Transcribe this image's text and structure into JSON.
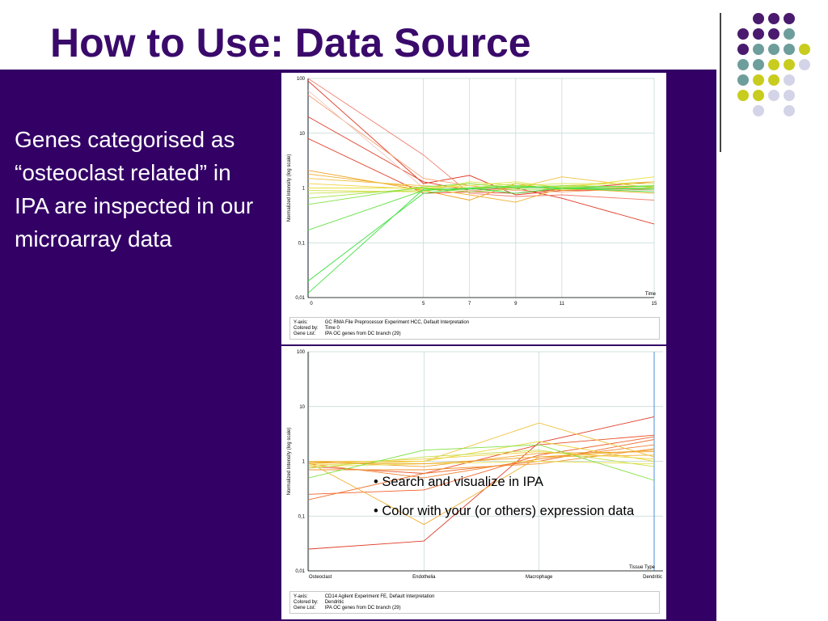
{
  "slide": {
    "title": "How to Use: Data Source",
    "left_text": "Genes categorised as “osteoclast related” in IPA are inspected in our microarray data",
    "bullets": [
      "• Search and visualize in IPA",
      "• Color with your (or others) expression data"
    ]
  },
  "theme": {
    "title_color": "#3a0a6b",
    "panel_color": "#330066",
    "dot_colors": [
      "#4a1a6e",
      "#6e9e9c",
      "#c8cc1e",
      "#d4d4e8"
    ]
  },
  "dots": {
    "grid": [
      [
        null,
        "purple",
        "purple",
        "purple",
        null
      ],
      [
        "purple",
        "purple",
        "purple",
        "teal",
        null
      ],
      [
        "purple",
        "teal",
        "teal",
        "teal",
        "yellow"
      ],
      [
        "teal",
        "teal",
        "yellow",
        "yellow",
        "lavender"
      ],
      [
        "teal",
        "yellow",
        "yellow",
        "lavender",
        null
      ],
      [
        "yellow",
        "yellow",
        "lavender",
        "lavender",
        null
      ],
      [
        null,
        "lavender",
        null,
        "lavender",
        null
      ]
    ]
  },
  "chart_data": [
    {
      "type": "line",
      "xlabel": "Time",
      "ylabel": "Normalized Intensity (log scale)",
      "y_scale": "log",
      "ylim": [
        0.01,
        100
      ],
      "xlim": [
        0,
        15
      ],
      "x_ticks": [
        0,
        5,
        7,
        9,
        11,
        15
      ],
      "y_ticks": [
        "100",
        "10",
        "1",
        "0,1",
        "0,01"
      ],
      "info": {
        "rows": [
          [
            "Y-axis:",
            "GC RMA File Preprocessor Experiment HCC, Default Interpretation"
          ],
          [
            "Colored by:",
            "Time 0"
          ],
          [
            "Gene List:",
            "IPA OC genes from DC branch (29)"
          ]
        ]
      },
      "x": [
        0,
        5,
        7,
        9,
        11,
        15
      ],
      "series": [
        {
          "color": "#e03c28",
          "values": [
            90,
            1.2,
            1.7,
            0.75,
            0.9,
            0.95
          ]
        },
        {
          "color": "#e03c28",
          "values": [
            20,
            1.3,
            0.9,
            1.0,
            0.65,
            0.22
          ]
        },
        {
          "color": "#e03c28",
          "values": [
            8,
            0.8,
            0.85,
            0.8,
            0.95,
            1.3
          ]
        },
        {
          "color": "#f08070",
          "values": [
            100,
            4,
            0.8,
            0.7,
            0.75,
            0.6
          ]
        },
        {
          "color": "#f4a070",
          "values": [
            50,
            1.5,
            1.1,
            0.9,
            0.85,
            1.0
          ]
        },
        {
          "color": "#f0c8c0",
          "values": [
            60,
            1.0,
            0.9,
            1.1,
            1.0,
            0.9
          ]
        },
        {
          "color": "#f0a020",
          "values": [
            2.1,
            0.9,
            0.6,
            1.2,
            0.9,
            1.1
          ]
        },
        {
          "color": "#f0b030",
          "values": [
            1.8,
            1.0,
            0.75,
            0.55,
            1.0,
            0.8
          ]
        },
        {
          "color": "#f0c040",
          "values": [
            1.5,
            1.1,
            1.0,
            1.0,
            1.6,
            1.0
          ]
        },
        {
          "color": "#f0d040",
          "values": [
            1.2,
            0.95,
            1.2,
            1.0,
            1.1,
            1.3
          ]
        },
        {
          "color": "#e8e040",
          "values": [
            1.0,
            1.0,
            1.1,
            1.3,
            1.0,
            1.6
          ]
        },
        {
          "color": "#d8e040",
          "values": [
            0.9,
            0.85,
            1.3,
            1.1,
            1.2,
            1.2
          ]
        },
        {
          "color": "#c8e050",
          "values": [
            0.8,
            0.9,
            1.0,
            1.2,
            1.05,
            1.1
          ]
        },
        {
          "color": "#a0e040",
          "values": [
            0.65,
            1.0,
            0.85,
            0.95,
            0.95,
            1.0
          ]
        },
        {
          "color": "#80e040",
          "values": [
            0.5,
            1.05,
            1.2,
            1.0,
            1.1,
            1.05
          ]
        },
        {
          "color": "#60e040",
          "values": [
            0.17,
            0.9,
            1.0,
            1.1,
            1.0,
            1.1
          ]
        },
        {
          "color": "#40e040",
          "values": [
            0.012,
            0.95,
            0.95,
            1.05,
            1.0,
            0.95
          ]
        },
        {
          "color": "#40e040",
          "values": [
            0.02,
            0.8,
            1.0,
            0.8,
            1.0,
            0.85
          ]
        }
      ]
    },
    {
      "type": "line",
      "xlabel": "Tissue Type",
      "ylabel": "Normalized Intensity (log scale)",
      "y_scale": "log",
      "ylim": [
        0.01,
        100
      ],
      "categories": [
        "Osteoclast",
        "Endothelia",
        "Macrophage",
        "Dendritic"
      ],
      "y_ticks": [
        "100",
        "10",
        "1",
        "0,1",
        "0,01"
      ],
      "info": {
        "rows": [
          [
            "Y-axis:",
            "CD14 Agilent Experiment FE, Default Interpretation"
          ],
          [
            "Colored by:",
            "Dendritic"
          ],
          [
            "Gene List:",
            "IPA OC genes from DC branch (29)"
          ]
        ]
      },
      "series": [
        {
          "color": "#e03c28",
          "values": [
            0.025,
            0.035,
            2.2,
            6.5
          ]
        },
        {
          "color": "#e85028",
          "values": [
            0.8,
            0.6,
            2.0,
            3.0
          ]
        },
        {
          "color": "#f06028",
          "values": [
            0.25,
            0.3,
            1.3,
            2.8
          ]
        },
        {
          "color": "#f07030",
          "values": [
            0.2,
            0.6,
            1.0,
            2.5
          ]
        },
        {
          "color": "#f08030",
          "values": [
            0.9,
            0.5,
            1.1,
            2.0
          ]
        },
        {
          "color": "#f09030",
          "values": [
            0.7,
            0.7,
            0.9,
            1.7
          ]
        },
        {
          "color": "#f0a030",
          "values": [
            1.0,
            0.8,
            1.4,
            1.5
          ]
        },
        {
          "color": "#f0b030",
          "values": [
            0.95,
            0.07,
            1.2,
            1.3
          ]
        },
        {
          "color": "#f0c040",
          "values": [
            1.0,
            1.0,
            5.0,
            1.2
          ]
        },
        {
          "color": "#f0d040",
          "values": [
            0.9,
            1.1,
            1.5,
            1.1
          ]
        },
        {
          "color": "#e8d840",
          "values": [
            0.85,
            1.0,
            2.3,
            1.0
          ]
        },
        {
          "color": "#e8e050",
          "values": [
            0.8,
            0.9,
            1.0,
            0.9
          ]
        },
        {
          "color": "#c8e050",
          "values": [
            0.75,
            1.2,
            1.6,
            0.8
          ]
        },
        {
          "color": "#80e040",
          "values": [
            0.5,
            1.6,
            2.0,
            0.45
          ]
        },
        {
          "color": "#f0a020",
          "values": [
            0.95,
            0.9,
            1.2,
            1.6
          ]
        }
      ]
    }
  ]
}
